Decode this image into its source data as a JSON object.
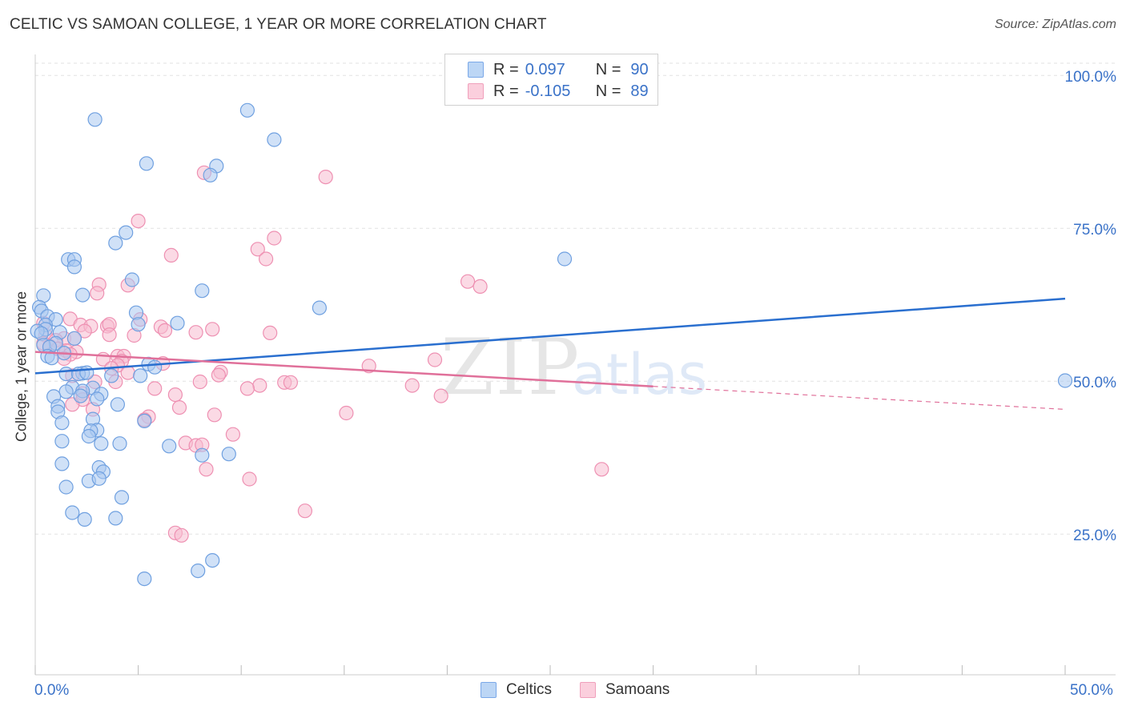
{
  "header": {
    "title": "CELTIC VS SAMOAN COLLEGE, 1 YEAR OR MORE CORRELATION CHART",
    "source": "Source: ZipAtlas.com"
  },
  "watermark": {
    "zip": "ZIP",
    "atlas": "atlas"
  },
  "legend": {
    "rows": [
      {
        "r_label": "R =",
        "r_value": "0.097",
        "n_label": "N =",
        "n_value": "90",
        "color": "#7aa8e8"
      },
      {
        "r_label": "R =",
        "r_value": "-0.105",
        "n_label": "N =",
        "n_value": "89",
        "color": "#f0a0bc"
      }
    ]
  },
  "bottom_legend": {
    "celtics": "Celtics",
    "samoans": "Samoans"
  },
  "colors": {
    "celtics_fill": "#a9c8f0",
    "celtics_stroke": "#6fa0e0",
    "celtics_line": "#2a6fcf",
    "samoans_fill": "#f8bcd0",
    "samoans_stroke": "#ee90b2",
    "samoans_line": "#e0709a",
    "axis_text": "#3a72c8"
  },
  "chart_data": {
    "type": "scatter",
    "title": "CELTIC VS SAMOAN COLLEGE, 1 YEAR OR MORE CORRELATION CHART",
    "xlabel": "",
    "ylabel": "College, 1 year or more",
    "xlim": [
      0,
      50
    ],
    "ylim": [
      2,
      102
    ],
    "x_tick_labels": [
      "0.0%",
      "50.0%"
    ],
    "y_ticks": [
      25,
      50,
      75,
      100
    ],
    "y_tick_labels": [
      "25.0%",
      "50.0%",
      "75.0%",
      "100.0%"
    ],
    "series": [
      {
        "name": "Celtics",
        "r": 0.097,
        "n": 90,
        "trend": {
          "x": [
            0,
            50
          ],
          "y": [
            51.3,
            63.5
          ],
          "dashed_from": null
        },
        "points": [
          [
            2.9,
            92.8
          ],
          [
            10.3,
            94.3
          ],
          [
            11.6,
            89.5
          ],
          [
            5.4,
            85.6
          ],
          [
            8.8,
            85.2
          ],
          [
            8.5,
            83.7
          ],
          [
            4.4,
            74.3
          ],
          [
            3.9,
            72.6
          ],
          [
            1.6,
            69.9
          ],
          [
            1.9,
            69.9
          ],
          [
            1.9,
            68.7
          ],
          [
            25.7,
            70.0
          ],
          [
            4.7,
            66.6
          ],
          [
            0.4,
            64.0
          ],
          [
            2.3,
            64.1
          ],
          [
            8.1,
            64.8
          ],
          [
            0.2,
            62.1
          ],
          [
            0.3,
            61.5
          ],
          [
            0.6,
            60.6
          ],
          [
            13.8,
            62.0
          ],
          [
            4.9,
            61.2
          ],
          [
            1.0,
            60.1
          ],
          [
            0.5,
            59.2
          ],
          [
            5.0,
            59.3
          ],
          [
            6.9,
            59.5
          ],
          [
            0.5,
            58.5
          ],
          [
            0.1,
            58.2
          ],
          [
            0.3,
            57.8
          ],
          [
            1.2,
            58.0
          ],
          [
            1.0,
            56.2
          ],
          [
            0.4,
            55.9
          ],
          [
            0.7,
            55.6
          ],
          [
            1.9,
            57.0
          ],
          [
            0.6,
            54.1
          ],
          [
            0.8,
            53.8
          ],
          [
            1.4,
            54.6
          ],
          [
            5.5,
            52.8
          ],
          [
            5.8,
            52.3
          ],
          [
            1.5,
            51.2
          ],
          [
            2.3,
            51.3
          ],
          [
            2.1,
            51.2
          ],
          [
            2.5,
            51.4
          ],
          [
            3.7,
            50.9
          ],
          [
            5.1,
            50.9
          ],
          [
            1.8,
            49.0
          ],
          [
            2.8,
            48.9
          ],
          [
            1.5,
            48.3
          ],
          [
            2.3,
            48.4
          ],
          [
            3.2,
            47.9
          ],
          [
            0.9,
            47.5
          ],
          [
            2.2,
            47.6
          ],
          [
            3.0,
            47.1
          ],
          [
            4.0,
            46.2
          ],
          [
            1.1,
            45.9
          ],
          [
            1.1,
            45.0
          ],
          [
            2.8,
            43.8
          ],
          [
            5.3,
            43.5
          ],
          [
            1.3,
            43.2
          ],
          [
            3.0,
            42.0
          ],
          [
            2.7,
            41.9
          ],
          [
            2.6,
            41.0
          ],
          [
            1.3,
            40.2
          ],
          [
            3.2,
            39.8
          ],
          [
            4.1,
            39.8
          ],
          [
            6.5,
            39.4
          ],
          [
            8.1,
            37.9
          ],
          [
            9.4,
            38.1
          ],
          [
            1.3,
            36.5
          ],
          [
            3.1,
            35.9
          ],
          [
            3.3,
            35.2
          ],
          [
            2.6,
            33.7
          ],
          [
            3.1,
            34.1
          ],
          [
            1.5,
            32.7
          ],
          [
            4.2,
            31.0
          ],
          [
            1.8,
            28.5
          ],
          [
            2.4,
            27.4
          ],
          [
            3.9,
            27.6
          ],
          [
            8.6,
            20.7
          ],
          [
            7.9,
            19.0
          ],
          [
            5.3,
            17.7
          ],
          [
            50.0,
            50.1
          ]
        ]
      },
      {
        "name": "Samoans",
        "r": -0.105,
        "n": 89,
        "trend": {
          "x": [
            0,
            50
          ],
          "y": [
            54.8,
            45.4
          ],
          "dashed_from": 30
        },
        "points": [
          [
            8.2,
            84.1
          ],
          [
            14.1,
            83.4
          ],
          [
            5.0,
            76.2
          ],
          [
            11.6,
            73.4
          ],
          [
            10.8,
            71.6
          ],
          [
            6.6,
            70.6
          ],
          [
            11.2,
            70.0
          ],
          [
            21.0,
            66.3
          ],
          [
            21.6,
            65.5
          ],
          [
            3.1,
            65.8
          ],
          [
            4.5,
            65.7
          ],
          [
            3.0,
            64.4
          ],
          [
            5.1,
            60.1
          ],
          [
            1.7,
            60.2
          ],
          [
            0.4,
            59.5
          ],
          [
            2.2,
            59.2
          ],
          [
            2.7,
            59.0
          ],
          [
            3.5,
            59.0
          ],
          [
            3.6,
            59.3
          ],
          [
            6.1,
            58.9
          ],
          [
            6.3,
            58.3
          ],
          [
            8.6,
            58.5
          ],
          [
            2.4,
            58.2
          ],
          [
            7.8,
            58.0
          ],
          [
            11.4,
            57.9
          ],
          [
            0.5,
            57.5
          ],
          [
            3.6,
            57.6
          ],
          [
            4.8,
            57.5
          ],
          [
            1.4,
            57.0
          ],
          [
            1.9,
            57.0
          ],
          [
            1.0,
            56.7
          ],
          [
            0.4,
            56.2
          ],
          [
            0.7,
            55.7
          ],
          [
            1.1,
            55.3
          ],
          [
            1.5,
            55.0
          ],
          [
            2.0,
            54.8
          ],
          [
            1.7,
            54.4
          ],
          [
            4.0,
            54.1
          ],
          [
            4.3,
            54.1
          ],
          [
            1.4,
            53.7
          ],
          [
            3.3,
            53.6
          ],
          [
            4.2,
            53.3
          ],
          [
            19.4,
            53.5
          ],
          [
            6.2,
            52.9
          ],
          [
            4.0,
            52.6
          ],
          [
            3.7,
            52.1
          ],
          [
            16.2,
            52.5
          ],
          [
            9.0,
            51.5
          ],
          [
            8.9,
            51.0
          ],
          [
            4.5,
            51.4
          ],
          [
            1.8,
            50.9
          ],
          [
            3.9,
            49.9
          ],
          [
            2.9,
            49.9
          ],
          [
            8.0,
            49.9
          ],
          [
            12.1,
            49.8
          ],
          [
            12.4,
            49.8
          ],
          [
            10.9,
            49.3
          ],
          [
            18.3,
            49.3
          ],
          [
            10.3,
            48.8
          ],
          [
            5.8,
            48.8
          ],
          [
            2.3,
            48.0
          ],
          [
            6.8,
            47.8
          ],
          [
            19.7,
            47.6
          ],
          [
            2.3,
            47.0
          ],
          [
            1.8,
            46.2
          ],
          [
            7.0,
            45.7
          ],
          [
            2.8,
            45.4
          ],
          [
            15.1,
            44.8
          ],
          [
            8.7,
            44.5
          ],
          [
            5.5,
            44.2
          ],
          [
            5.3,
            43.7
          ],
          [
            9.6,
            41.3
          ],
          [
            7.3,
            39.9
          ],
          [
            7.8,
            39.5
          ],
          [
            8.1,
            39.6
          ],
          [
            8.3,
            35.6
          ],
          [
            10.4,
            34.0
          ],
          [
            27.5,
            35.6
          ],
          [
            13.1,
            28.8
          ],
          [
            6.8,
            25.2
          ],
          [
            7.1,
            24.8
          ]
        ]
      }
    ]
  }
}
